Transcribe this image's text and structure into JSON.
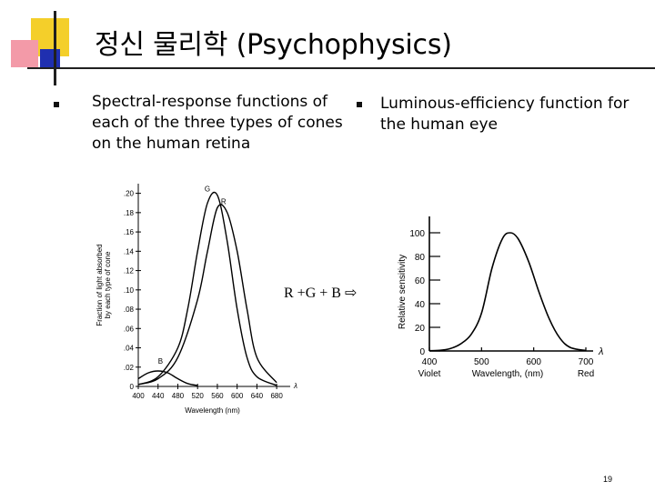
{
  "slide": {
    "title": "정신 물리학 (Psychophysics)",
    "bullets": [
      "Spectral-response functions of each of the three types of cones on the human retina",
      "Luminous-efficiency function for the human eye"
    ],
    "formula": "R +G + B ⇨",
    "page_number": "19"
  },
  "chart_data": [
    {
      "type": "line",
      "xlabel": "Wavelength (nm)",
      "ylabel": "Fraction of light absorbed by each type of cone",
      "x_ticks": [
        "400",
        "440",
        "480",
        "520",
        "560",
        "600",
        "640",
        "680"
      ],
      "y_ticks": [
        "0",
        ".02",
        ".04",
        ".06",
        ".08",
        ".10",
        ".12",
        ".14",
        ".16",
        ".18",
        ".20"
      ],
      "xlim": [
        400,
        700
      ],
      "ylim": [
        0,
        0.21
      ],
      "axis_symbol": "λ",
      "series": [
        {
          "name": "G",
          "x": [
            400,
            440,
            480,
            500,
            520,
            540,
            560,
            580,
            600,
            620,
            640,
            680
          ],
          "y": [
            0.002,
            0.01,
            0.04,
            0.08,
            0.14,
            0.19,
            0.198,
            0.15,
            0.08,
            0.03,
            0.01,
            0.001
          ]
        },
        {
          "name": "R",
          "x": [
            400,
            440,
            480,
            520,
            540,
            560,
            580,
            600,
            620,
            640,
            680
          ],
          "y": [
            0.002,
            0.008,
            0.03,
            0.09,
            0.14,
            0.185,
            0.18,
            0.14,
            0.08,
            0.03,
            0.004
          ]
        },
        {
          "name": "B",
          "x": [
            400,
            420,
            440,
            460,
            480,
            500,
            520
          ],
          "y": [
            0.008,
            0.014,
            0.016,
            0.014,
            0.008,
            0.003,
            0.001
          ]
        }
      ]
    },
    {
      "type": "line",
      "xlabel": "Wavelength, (nm)",
      "ylabel": "Relative sensitivity",
      "x_ticks": [
        "400",
        "500",
        "600",
        "700"
      ],
      "y_ticks": [
        "0",
        "20",
        "40",
        "60",
        "80",
        "100"
      ],
      "xlim": [
        400,
        700
      ],
      "ylim": [
        0,
        100
      ],
      "axis_symbol": "λ",
      "x_end_labels": [
        "Violet",
        "Red"
      ],
      "series": [
        {
          "x": [
            400,
            420,
            440,
            460,
            480,
            500,
            520,
            540,
            555,
            570,
            590,
            610,
            630,
            650,
            670,
            700
          ],
          "y": [
            0.2,
            0.5,
            2,
            6,
            14,
            32,
            70,
            95,
            100,
            95,
            76,
            50,
            27,
            11,
            3,
            0.3
          ]
        }
      ]
    }
  ]
}
